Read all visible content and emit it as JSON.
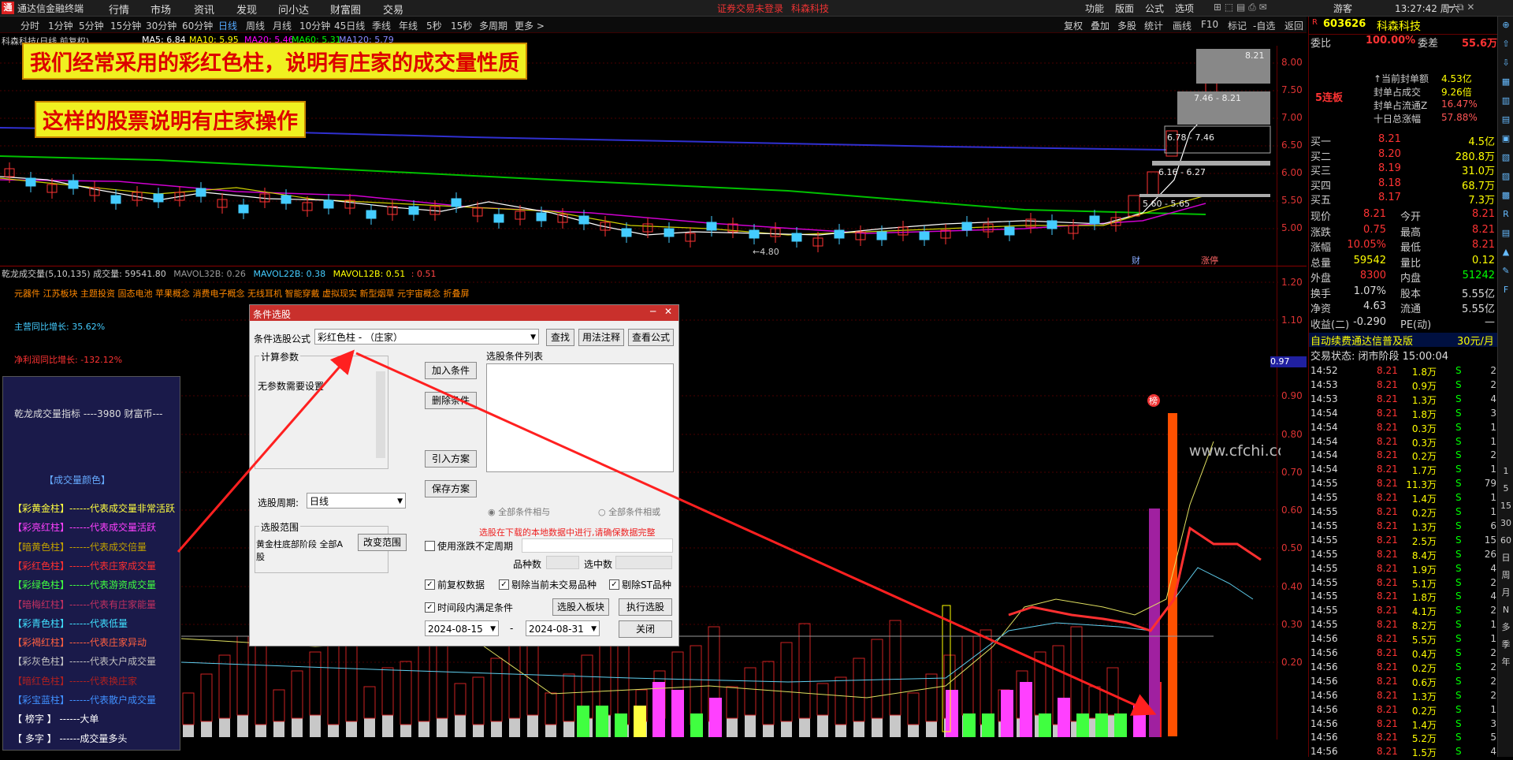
{
  "topbar": {
    "app_title": "通达信金融终端",
    "menus": [
      "行情",
      "市场",
      "资讯",
      "发现",
      "问小达",
      "财富圈",
      "交易"
    ],
    "login_status": "证券交易未登录",
    "stock_name_top": "科森科技",
    "right_menus": [
      "功能",
      "版面",
      "公式",
      "选项"
    ],
    "user": "游客",
    "clock": "13:27:42 周六"
  },
  "periods": [
    "分时",
    "1分钟",
    "5分钟",
    "15分钟",
    "30分钟",
    "60分钟",
    "日线",
    "周线",
    "月线",
    "10分钟",
    "45日线",
    "季线",
    "年线",
    "5秒",
    "15秒",
    "多周期",
    "更多 >"
  ],
  "selected_period": "日线",
  "right_tools": [
    "复权",
    "叠加",
    "多股",
    "统计",
    "画线",
    "F10",
    "标记",
    "-自选",
    "返回"
  ],
  "ma_bar": {
    "title": "科森科技(日线,前复权)",
    "items": [
      {
        "label": "MA5: 6.84",
        "color": "#ffffff"
      },
      {
        "label": "MA10: 5.95",
        "color": "#ffff00"
      },
      {
        "label": "MA20: 5.46",
        "color": "#ff00ff"
      },
      {
        "label": "MA60: 5.31",
        "color": "#00ff00"
      },
      {
        "label": "MA120: 5.79",
        "color": "#8080ff"
      }
    ]
  },
  "banners": [
    "我们经常采用的彩红色柱，说明有庄家的成交量性质",
    "这样的股票说明有庄家操作"
  ],
  "price_axis": [
    "8.00",
    "7.50",
    "7.00",
    "6.50",
    "6.00",
    "5.50",
    "5.00"
  ],
  "price_boxes": [
    "8.21",
    "7.46 - 8.21",
    "6.78 - 7.46",
    "6.16 - 6.27",
    "5.60 - 5.65"
  ],
  "low_label": "←4.80",
  "markers": {
    "cai": "财",
    "zhangting": "涨停"
  },
  "indicator_bar": {
    "title": "乾龙成交量(5,10,135) 成交量: 59541.80",
    "mavol32": "MAVOL32B: 0.26",
    "mavol22": "MAVOL22B: 0.38",
    "mavol12": "MAVOL12B: 0.51",
    "neg": ": 0.51"
  },
  "concepts": "元器件 江苏板块 主题投资 固态电池 苹果概念 消费电子概念 无线耳机 智能穿戴 虚拟现实 新型烟草 元宇宙概念 折叠屏",
  "growth": {
    "main": "主营同比增长: 35.62%",
    "net": "净利润同比增长: -132.12%"
  },
  "vol_axis": [
    "1.20",
    "1.10",
    "0.90",
    "0.80",
    "0.70",
    "0.60",
    "0.50",
    "0.40",
    "0.30",
    "0.20"
  ],
  "vol_marker_value": "0.97",
  "watermark": "www.cfchi.com",
  "legend": {
    "title": "乾龙成交量指标 ----3980 财富币---",
    "subtitle": "【成交量颜色】",
    "items": [
      {
        "text": "【彩黄金柱】------代表成交量非常活跃",
        "color": "#ffff40"
      },
      {
        "text": "【彩亮红柱】------代表成交量活跃",
        "color": "#ff40ff"
      },
      {
        "text": "【暗黄色柱】------代表成交倍量",
        "color": "#c0a000"
      },
      {
        "text": "【彩红色柱】------代表庄家成交量",
        "color": "#ff3030"
      },
      {
        "text": "【彩绿色柱】------代表游资成交量",
        "color": "#40ff40"
      },
      {
        "text": "【暗梅红柱】------代表有庄家能量",
        "color": "#c03060"
      },
      {
        "text": "【彩青色柱】------代表低量",
        "color": "#40e0ff"
      },
      {
        "text": "【彩褐红柱】------代表庄家异动",
        "color": "#ff6040"
      },
      {
        "text": "【彩灰色柱】------代表大户成交量",
        "color": "#c0c0c0"
      },
      {
        "text": "【暗红色柱】------代表换庄家",
        "color": "#b02020"
      },
      {
        "text": "【彩宝蓝柱】------代表散户成交量",
        "color": "#4090ff"
      },
      {
        "text": "【  榜字  】      ------大单",
        "color": "#ffffff"
      },
      {
        "text": "【  多字  】      ------成交量多头",
        "color": "#ffffff"
      }
    ]
  },
  "dialog": {
    "title": "条件选股",
    "formula_label": "条件选股公式",
    "formula_value": "彩红色柱  -  （庄家）",
    "btn_find": "查找",
    "btn_usage": "用法注释",
    "btn_view": "查看公式",
    "params_group": "计算参数",
    "params_text": "无参数需要设置",
    "cond_list_label": "选股条件列表",
    "btn_add": "加入条件",
    "btn_delete": "删除条件",
    "btn_import": "引入方案",
    "btn_save": "保存方案",
    "period_label": "选股周期:",
    "period_value": "日线",
    "radio_and": "全部条件相与",
    "radio_or": "全部条件相或",
    "range_group": "选股范围",
    "range_text": "黄金柱底部阶段 全部A股",
    "btn_range": "改变范围",
    "notice": "选股在下载的本地数据中进行,请确保数据完整",
    "chk_nonfixed": "使用涨跌不定周期",
    "count_label": "品种数",
    "selected_label": "选中数",
    "chk_prior": "前复权数据",
    "chk_remove_untraded": "剔除当前未交易品种",
    "chk_remove_st": "剔除ST品种",
    "chk_time": "时间段内满足条件",
    "btn_to_block": "选股入板块",
    "btn_execute": "执行选股",
    "date_from": "2024-08-15",
    "date_to": "2024-08-31",
    "btn_close": "关闭"
  },
  "rightpanel": {
    "code": "603626",
    "name": "科森科技",
    "weibi_label": "委比",
    "weibi_value": "100.00%",
    "weicha_label": "委差",
    "weicha_value": "55.6万",
    "streak": "5连板",
    "info": [
      {
        "label": "↑当前封单额",
        "value": "4.53亿"
      },
      {
        "label": "封单占成交",
        "value": "9.26倍"
      },
      {
        "label": "封单占流通Z",
        "value": "16.47%"
      },
      {
        "label": "十日总涨幅",
        "value": "57.88%"
      }
    ],
    "bids": [
      {
        "label": "买一",
        "price": "8.21",
        "vol": "4.5亿"
      },
      {
        "label": "买二",
        "price": "8.20",
        "vol": "280.8万"
      },
      {
        "label": "买三",
        "price": "8.19",
        "vol": "31.0万"
      },
      {
        "label": "买四",
        "price": "8.18",
        "vol": "68.7万"
      },
      {
        "label": "买五",
        "price": "8.17",
        "vol": "7.3万"
      }
    ],
    "quote": [
      {
        "l1": "现价",
        "v1": "8.21",
        "l2": "今开",
        "v2": "8.21"
      },
      {
        "l1": "涨跌",
        "v1": "0.75",
        "l2": "最高",
        "v2": "8.21"
      },
      {
        "l1": "涨幅",
        "v1": "10.05%",
        "l2": "最低",
        "v2": "8.21"
      },
      {
        "l1": "总量",
        "v1": "59542",
        "l2": "量比",
        "v2": "0.12"
      },
      {
        "l1": "外盘",
        "v1": "8300",
        "l2": "内盘",
        "v2": "51242"
      },
      {
        "l1": "换手",
        "v1": "1.07%",
        "l2": "股本",
        "v2": "5.55亿"
      },
      {
        "l1": "净资",
        "v1": "4.63",
        "l2": "流通",
        "v2": "5.55亿"
      },
      {
        "l1": "收益(二)",
        "v1": "-0.290",
        "l2": "PE(动)",
        "v2": "—"
      }
    ],
    "ad": "自动续费通达信普及版",
    "ad_price": "30元/月",
    "trade_status": "交易状态: 闭市阶段 15:00:04",
    "ticks": [
      {
        "t": "14:52",
        "p": "8.21",
        "v": "1.8万",
        "s": "S",
        "n": "2"
      },
      {
        "t": "14:53",
        "p": "8.21",
        "v": "0.9万",
        "s": "S",
        "n": "2"
      },
      {
        "t": "14:53",
        "p": "8.21",
        "v": "1.3万",
        "s": "S",
        "n": "4"
      },
      {
        "t": "14:54",
        "p": "8.21",
        "v": "1.8万",
        "s": "S",
        "n": "3"
      },
      {
        "t": "14:54",
        "p": "8.21",
        "v": "0.3万",
        "s": "S",
        "n": "1"
      },
      {
        "t": "14:54",
        "p": "8.21",
        "v": "0.3万",
        "s": "S",
        "n": "1"
      },
      {
        "t": "14:54",
        "p": "8.21",
        "v": "0.2万",
        "s": "S",
        "n": "2"
      },
      {
        "t": "14:54",
        "p": "8.21",
        "v": "1.7万",
        "s": "S",
        "n": "1"
      },
      {
        "t": "14:55",
        "p": "8.21",
        "v": "11.3万",
        "s": "S",
        "n": "79"
      },
      {
        "t": "14:55",
        "p": "8.21",
        "v": "1.4万",
        "s": "S",
        "n": "1"
      },
      {
        "t": "14:55",
        "p": "8.21",
        "v": "0.2万",
        "s": "S",
        "n": "1"
      },
      {
        "t": "14:55",
        "p": "8.21",
        "v": "1.3万",
        "s": "S",
        "n": "6"
      },
      {
        "t": "14:55",
        "p": "8.21",
        "v": "2.5万",
        "s": "S",
        "n": "15"
      },
      {
        "t": "14:55",
        "p": "8.21",
        "v": "8.4万",
        "s": "S",
        "n": "26"
      },
      {
        "t": "14:55",
        "p": "8.21",
        "v": "1.9万",
        "s": "S",
        "n": "4"
      },
      {
        "t": "14:55",
        "p": "8.21",
        "v": "5.1万",
        "s": "S",
        "n": "2"
      },
      {
        "t": "14:55",
        "p": "8.21",
        "v": "1.8万",
        "s": "S",
        "n": "4"
      },
      {
        "t": "14:55",
        "p": "8.21",
        "v": "4.1万",
        "s": "S",
        "n": "2"
      },
      {
        "t": "14:55",
        "p": "8.21",
        "v": "8.2万",
        "s": "S",
        "n": "1"
      },
      {
        "t": "14:56",
        "p": "8.21",
        "v": "5.5万",
        "s": "S",
        "n": "1"
      },
      {
        "t": "14:56",
        "p": "8.21",
        "v": "0.4万",
        "s": "S",
        "n": "2"
      },
      {
        "t": "14:56",
        "p": "8.21",
        "v": "0.2万",
        "s": "S",
        "n": "2"
      },
      {
        "t": "14:56",
        "p": "8.21",
        "v": "0.6万",
        "s": "S",
        "n": "2"
      },
      {
        "t": "14:56",
        "p": "8.21",
        "v": "1.3万",
        "s": "S",
        "n": "2"
      },
      {
        "t": "14:56",
        "p": "8.21",
        "v": "0.2万",
        "s": "S",
        "n": "1"
      },
      {
        "t": "14:56",
        "p": "8.21",
        "v": "1.4万",
        "s": "S",
        "n": "3"
      },
      {
        "t": "14:56",
        "p": "8.21",
        "v": "5.2万",
        "s": "S",
        "n": "5"
      },
      {
        "t": "14:56",
        "p": "8.21",
        "v": "1.5万",
        "s": "S",
        "n": "4"
      }
    ]
  },
  "side_icons": [
    "pin-icon",
    "up-icon",
    "down-icon",
    "layout-icon",
    "chart-icon",
    "report-icon",
    "news-icon",
    "fund-icon",
    "stats-icon",
    "board-icon",
    "rsi-icon",
    "sector-icon",
    "mover-icon",
    "pen-icon",
    "fs-icon",
    "day-icon",
    "week-icon",
    "month-icon",
    "season-icon",
    "year-icon"
  ],
  "side_labels": [
    "1",
    "5",
    "15",
    "30",
    "60",
    "日",
    "周",
    "月",
    "N",
    "多",
    "季",
    "年"
  ]
}
